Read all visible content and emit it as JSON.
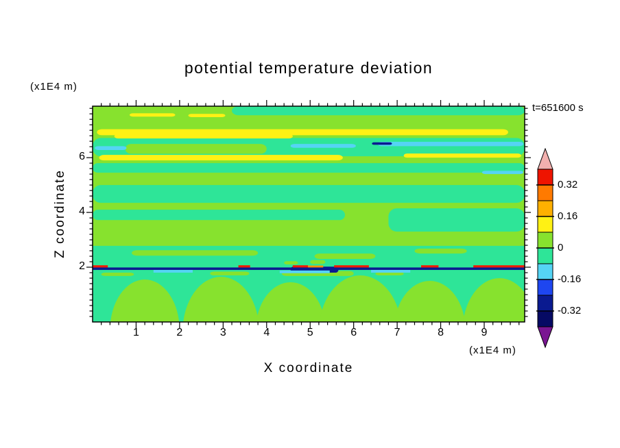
{
  "title": "potential temperature deviation",
  "time_label": "t=651600 s",
  "axes": {
    "x_label": "X coordinate",
    "x_unit": "(x1E4 m)",
    "z_label": "Z coordinate",
    "z_unit": "(x1E4 m)"
  },
  "colorbar": {
    "top_arrow": "#f2b0ae",
    "bottom_arrow": "#7a1692",
    "segments": [
      {
        "color": "#ee1400",
        "range": [
          0.32,
          0.4
        ]
      },
      {
        "color": "#ff7a00",
        "range": [
          0.24,
          0.32
        ]
      },
      {
        "color": "#ffb000",
        "range": [
          0.16,
          0.24
        ]
      },
      {
        "color": "#fff114",
        "range": [
          0.08,
          0.16
        ]
      },
      {
        "color": "#87e22e",
        "range": [
          0.0,
          0.08
        ]
      },
      {
        "color": "#2ee598",
        "range": [
          -0.08,
          0.0
        ]
      },
      {
        "color": "#55d4f4",
        "range": [
          -0.16,
          -0.08
        ]
      },
      {
        "color": "#1e46f0",
        "range": [
          -0.24,
          -0.16
        ]
      },
      {
        "color": "#0a1a90",
        "range": [
          -0.32,
          -0.24
        ]
      },
      {
        "color": "#060a64",
        "range": [
          -0.4,
          -0.32
        ]
      }
    ],
    "labels": [
      {
        "text": "0.32",
        "boundary": 1
      },
      {
        "text": "0.16",
        "boundary": 3
      },
      {
        "text": "0",
        "boundary": 5
      },
      {
        "text": "-0.16",
        "boundary": 7
      },
      {
        "text": "-0.32",
        "boundary": 9
      }
    ]
  },
  "chart_data": {
    "type": "heatmap",
    "subtype": "filled-contour",
    "title": "potential temperature deviation",
    "xlabel": "X coordinate",
    "x_unit": "(x1E4 m)",
    "ylabel": "Z coordinate",
    "z_unit": "(x1E4 m)",
    "time": "t=651600 s",
    "x_range": [
      0,
      9.93
    ],
    "z_range": [
      0,
      7.88
    ],
    "x_ticks_major": [
      1,
      2,
      3,
      4,
      5,
      6,
      7,
      8,
      9
    ],
    "x_tick_minor_step": 0.2,
    "z_ticks_major": [
      2,
      4,
      6
    ],
    "z_tick_minor_step": 0.2,
    "contour_interval": 0.08,
    "labeled_levels": [
      0.32,
      0.16,
      0,
      -0.16,
      -0.32
    ],
    "palette": {
      "pos": "#87e22e",
      "neg": "#2ee598",
      "yel": "#fff114",
      "cyn": "#55d4f4",
      "navy": "#0a1a90",
      "red": "#f01800",
      "org": "#ff9000"
    },
    "features": [
      {
        "shape": "rect",
        "color": "pos",
        "x": [
          0,
          9.93
        ],
        "z": [
          1.95,
          7.88
        ]
      },
      {
        "shape": "rect",
        "color": "neg",
        "x": [
          0,
          9.93
        ],
        "z": [
          0,
          1.95
        ]
      },
      {
        "shape": "rect",
        "color": "neg",
        "x": [
          3.2,
          9.93
        ],
        "z": [
          7.55,
          7.88
        ],
        "r": 10
      },
      {
        "shape": "rect",
        "color": "neg",
        "x": [
          0,
          9.93
        ],
        "z": [
          6.05,
          6.72
        ],
        "r": 12
      },
      {
        "shape": "rect",
        "color": "pos",
        "x": [
          0.75,
          4.0
        ],
        "z": [
          6.14,
          6.5
        ],
        "r": 9
      },
      {
        "shape": "rect",
        "color": "neg",
        "x": [
          0,
          9.93
        ],
        "z": [
          5.45,
          5.8
        ],
        "r": 8
      },
      {
        "shape": "rect",
        "color": "neg",
        "x": [
          0,
          9.93
        ],
        "z": [
          4.35,
          5.0
        ],
        "r": 12
      },
      {
        "shape": "rect",
        "color": "neg",
        "x": [
          0,
          5.8
        ],
        "z": [
          3.72,
          4.1
        ],
        "r": 8
      },
      {
        "shape": "rect",
        "color": "neg",
        "x": [
          6.8,
          9.93
        ],
        "z": [
          3.3,
          4.15
        ],
        "r": 12
      },
      {
        "shape": "rect",
        "color": "neg",
        "x": [
          0,
          9.93
        ],
        "z": [
          1.95,
          2.78
        ]
      },
      {
        "shape": "rect",
        "color": "pos",
        "x": [
          0.9,
          3.8
        ],
        "z": [
          2.42,
          2.62
        ],
        "r": 8
      },
      {
        "shape": "rect",
        "color": "pos",
        "x": [
          5.1,
          6.5
        ],
        "z": [
          2.3,
          2.5
        ],
        "r": 8
      },
      {
        "shape": "rect",
        "color": "pos",
        "x": [
          7.4,
          8.6
        ],
        "z": [
          2.5,
          2.68
        ],
        "r": 8
      },
      {
        "shape": "rect",
        "color": "yel",
        "x": [
          0.1,
          9.55
        ],
        "z": [
          6.82,
          7.04
        ],
        "r": 7
      },
      {
        "shape": "rect",
        "color": "yel",
        "x": [
          0.5,
          4.6
        ],
        "z": [
          6.7,
          6.86
        ],
        "r": 6
      },
      {
        "shape": "rect",
        "color": "yel",
        "x": [
          0.15,
          5.75
        ],
        "z": [
          5.9,
          6.1
        ],
        "r": 7
      },
      {
        "shape": "rect",
        "color": "yel",
        "x": [
          7.15,
          9.85
        ],
        "z": [
          6.0,
          6.15
        ],
        "r": 5
      },
      {
        "shape": "rect",
        "color": "yel",
        "x": [
          0.85,
          1.9
        ],
        "z": [
          7.5,
          7.62
        ],
        "r": 5
      },
      {
        "shape": "rect",
        "color": "yel",
        "x": [
          2.2,
          3.05
        ],
        "z": [
          7.48,
          7.6
        ],
        "r": 5
      },
      {
        "shape": "rect",
        "color": "cyn",
        "x": [
          6.55,
          9.9
        ],
        "z": [
          6.42,
          6.58
        ],
        "r": 6
      },
      {
        "shape": "rect",
        "color": "cyn",
        "x": [
          4.55,
          6.05
        ],
        "z": [
          6.36,
          6.5
        ],
        "r": 6
      },
      {
        "shape": "rect",
        "color": "cyn",
        "x": [
          0.05,
          0.78
        ],
        "z": [
          6.28,
          6.42
        ],
        "r": 5
      },
      {
        "shape": "rect",
        "color": "cyn",
        "x": [
          8.95,
          9.9
        ],
        "z": [
          5.4,
          5.52
        ],
        "r": 5
      },
      {
        "shape": "rect",
        "color": "navy",
        "x": [
          6.42,
          6.88
        ],
        "z": [
          6.47,
          6.56
        ],
        "r": 3
      },
      {
        "shape": "ellipse",
        "color": "pos",
        "cx": 1.2,
        "cy": -0.3,
        "rx": 0.8,
        "ry": 1.85
      },
      {
        "shape": "ellipse",
        "color": "pos",
        "cx": 2.95,
        "cy": -0.35,
        "rx": 0.88,
        "ry": 2.0
      },
      {
        "shape": "ellipse",
        "color": "pos",
        "cx": 4.55,
        "cy": -0.3,
        "rx": 0.8,
        "ry": 1.75
      },
      {
        "shape": "ellipse",
        "color": "pos",
        "cx": 6.15,
        "cy": -0.35,
        "rx": 0.95,
        "ry": 2.05
      },
      {
        "shape": "ellipse",
        "color": "pos",
        "cx": 7.75,
        "cy": -0.3,
        "rx": 0.82,
        "ry": 1.8
      },
      {
        "shape": "ellipse",
        "color": "pos",
        "cx": 9.35,
        "cy": -0.35,
        "rx": 0.85,
        "ry": 1.95
      },
      {
        "shape": "rect",
        "color": "pos",
        "x": [
          0.2,
          0.95
        ],
        "z": [
          1.68,
          1.8
        ],
        "r": 6
      },
      {
        "shape": "rect",
        "color": "pos",
        "x": [
          2.7,
          3.6
        ],
        "z": [
          1.7,
          1.84
        ],
        "r": 6
      },
      {
        "shape": "rect",
        "color": "pos",
        "x": [
          4.35,
          6.0
        ],
        "z": [
          1.68,
          1.86
        ],
        "r": 6
      },
      {
        "shape": "rect",
        "color": "pos",
        "x": [
          6.5,
          7.15
        ],
        "z": [
          1.7,
          1.82
        ],
        "r": 6
      },
      {
        "shape": "rect",
        "color": "navy",
        "x": [
          0,
          9.93
        ],
        "z": [
          1.9,
          1.99
        ]
      },
      {
        "shape": "rect",
        "color": "navy",
        "x": [
          4.55,
          5.65
        ],
        "z": [
          1.8,
          2.02
        ],
        "r": 4
      },
      {
        "shape": "rect",
        "color": "red",
        "x": [
          0,
          0.35
        ],
        "z": [
          1.99,
          2.07
        ]
      },
      {
        "shape": "rect",
        "color": "red",
        "x": [
          3.35,
          3.62
        ],
        "z": [
          1.99,
          2.07
        ]
      },
      {
        "shape": "rect",
        "color": "red",
        "x": [
          4.6,
          4.95
        ],
        "z": [
          1.99,
          2.07
        ]
      },
      {
        "shape": "rect",
        "color": "red",
        "x": [
          5.55,
          6.35
        ],
        "z": [
          1.99,
          2.07
        ]
      },
      {
        "shape": "rect",
        "color": "red",
        "x": [
          7.55,
          7.95
        ],
        "z": [
          1.99,
          2.07
        ]
      },
      {
        "shape": "rect",
        "color": "red",
        "x": [
          8.75,
          9.93
        ],
        "z": [
          1.99,
          2.07
        ]
      },
      {
        "shape": "rect",
        "color": "org",
        "x": [
          4.95,
          5.3
        ],
        "z": [
          1.99,
          2.06
        ]
      },
      {
        "shape": "rect",
        "color": "cyn",
        "x": [
          1.4,
          2.3
        ],
        "z": [
          1.8,
          1.9
        ]
      },
      {
        "shape": "rect",
        "color": "cyn",
        "x": [
          4.3,
          5.45
        ],
        "z": [
          1.78,
          1.88
        ]
      },
      {
        "shape": "rect",
        "color": "cyn",
        "x": [
          6.4,
          7.3
        ],
        "z": [
          1.8,
          1.9
        ]
      },
      {
        "shape": "rect",
        "color": "pos",
        "x": [
          4.4,
          4.72
        ],
        "z": [
          2.1,
          2.22
        ],
        "r": 4
      },
      {
        "shape": "rect",
        "color": "pos",
        "x": [
          5.0,
          5.35
        ],
        "z": [
          2.12,
          2.26
        ],
        "r": 4
      }
    ]
  }
}
